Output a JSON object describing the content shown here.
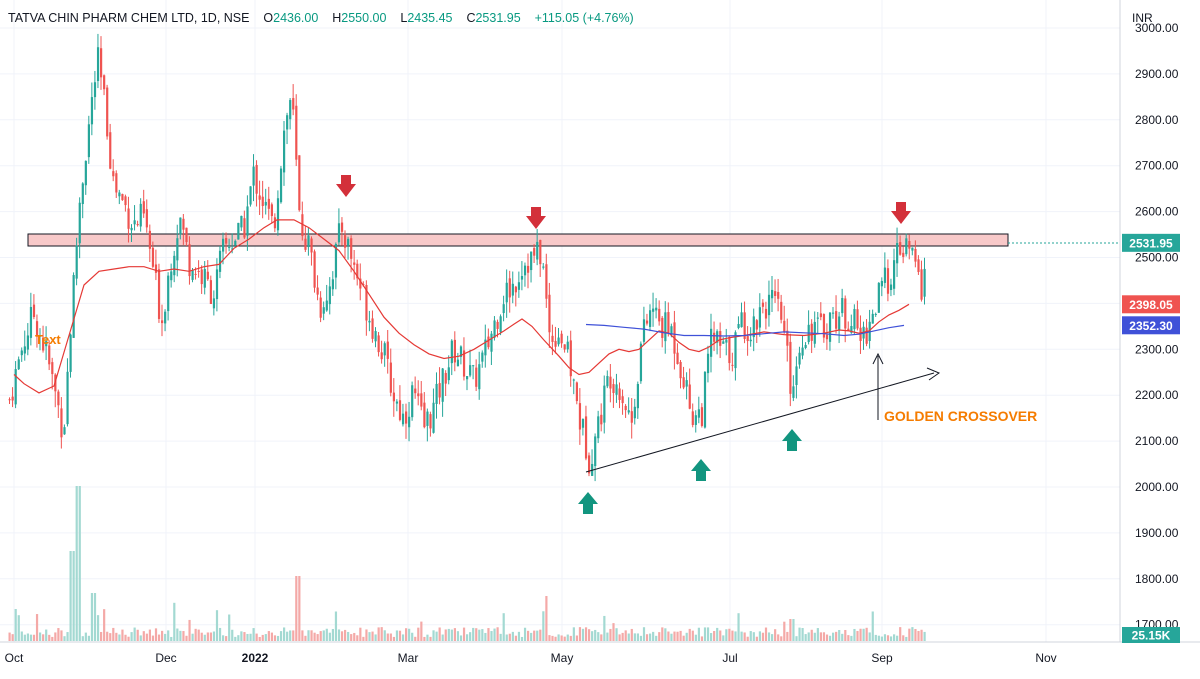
{
  "header": {
    "symbol": "TATVA CHIN PHARM CHEM LTD, 1D, NSE",
    "open_label": "O",
    "open": "2436.00",
    "high_label": "H",
    "high": "2550.00",
    "low_label": "L",
    "low": "2435.45",
    "close_label": "C",
    "close": "2531.95",
    "change": "+115.05 (+4.76%)"
  },
  "currency": "INR",
  "colors": {
    "up": "#26a69a",
    "down": "#ef5350",
    "vol_up": "#a3d9d2",
    "vol_down": "#f4a9a7",
    "ma_red": "#e53935",
    "ma_blue": "#3f51d8",
    "arrow_red": "#d3303a",
    "arrow_green": "#12957f",
    "orange_text": "#f57c00",
    "resistance_fill": "#f8c9c9"
  },
  "chart_data": {
    "type": "candlestick",
    "title": "TATVA CHIN PHARM CHEM LTD, 1D, NSE",
    "y_axis": {
      "unit": "INR",
      "range": [
        1680,
        3010
      ],
      "ticks": [
        "3000.00",
        "2900.00",
        "2800.00",
        "2700.00",
        "2600.00",
        "2500.00",
        "2400.00",
        "2300.00",
        "2200.00",
        "2100.00",
        "2000.00",
        "1900.00",
        "1800.00",
        "1700.00"
      ]
    },
    "x_axis": {
      "ticks": [
        "Oct",
        "Dec",
        "2022",
        "Mar",
        "May",
        "Jul",
        "Sep",
        "Nov"
      ]
    },
    "price_tags": [
      {
        "value": 2531.95,
        "label": "2531.95",
        "color": "#26a69a"
      },
      {
        "value": 2398.05,
        "label": "2398.05",
        "color": "#ef5350"
      },
      {
        "value": 2352.3,
        "label": "2352.30",
        "color": "#3f51d8"
      }
    ],
    "volume_tag": {
      "label": "25.15K",
      "color": "#26a69a"
    },
    "resistance_zone": {
      "top": 2550,
      "bottom": 2525
    },
    "series": [
      {
        "name": "MA red",
        "color": "#e53935",
        "points": [
          [
            0,
            2245
          ],
          [
            10,
            2225
          ],
          [
            25,
            2205
          ],
          [
            40,
            2220
          ],
          [
            55,
            2330
          ],
          [
            70,
            2440
          ],
          [
            85,
            2470
          ],
          [
            100,
            2475
          ],
          [
            115,
            2480
          ],
          [
            130,
            2480
          ],
          [
            145,
            2470
          ],
          [
            160,
            2475
          ],
          [
            175,
            2470
          ],
          [
            190,
            2480
          ],
          [
            205,
            2485
          ],
          [
            220,
            2520
          ],
          [
            235,
            2540
          ],
          [
            250,
            2565
          ],
          [
            263,
            2582
          ],
          [
            280,
            2582
          ],
          [
            295,
            2565
          ],
          [
            310,
            2540
          ],
          [
            325,
            2515
          ],
          [
            340,
            2470
          ],
          [
            355,
            2420
          ],
          [
            370,
            2370
          ],
          [
            385,
            2335
          ],
          [
            400,
            2310
          ],
          [
            415,
            2290
          ],
          [
            430,
            2280
          ],
          [
            445,
            2285
          ],
          [
            460,
            2300
          ],
          [
            475,
            2320
          ],
          [
            490,
            2340
          ],
          [
            500,
            2355
          ],
          [
            508,
            2366
          ],
          [
            518,
            2350
          ],
          [
            530,
            2320
          ],
          [
            545,
            2285
          ],
          [
            555,
            2260
          ],
          [
            565,
            2245
          ],
          [
            575,
            2250
          ],
          [
            585,
            2270
          ],
          [
            595,
            2290
          ],
          [
            605,
            2300
          ],
          [
            615,
            2295
          ],
          [
            625,
            2300
          ],
          [
            635,
            2320
          ],
          [
            645,
            2340
          ],
          [
            655,
            2335
          ],
          [
            665,
            2315
          ],
          [
            675,
            2300
          ],
          [
            685,
            2295
          ],
          [
            695,
            2305
          ],
          [
            705,
            2320
          ],
          [
            715,
            2325
          ],
          [
            730,
            2330
          ],
          [
            750,
            2338
          ],
          [
            770,
            2332
          ],
          [
            790,
            2330
          ],
          [
            810,
            2335
          ],
          [
            825,
            2342
          ],
          [
            835,
            2340
          ],
          [
            845,
            2335
          ],
          [
            855,
            2340
          ],
          [
            865,
            2360
          ],
          [
            875,
            2375
          ],
          [
            885,
            2385
          ],
          [
            895,
            2398
          ]
        ]
      },
      {
        "name": "MA blue",
        "color": "#3f51d8",
        "points": [
          [
            572,
            2354
          ],
          [
            590,
            2352
          ],
          [
            610,
            2348
          ],
          [
            630,
            2344
          ],
          [
            650,
            2336
          ],
          [
            670,
            2330
          ],
          [
            690,
            2330
          ],
          [
            710,
            2329
          ],
          [
            730,
            2330
          ],
          [
            750,
            2334
          ],
          [
            770,
            2338
          ],
          [
            790,
            2336
          ],
          [
            810,
            2334
          ],
          [
            830,
            2330
          ],
          [
            845,
            2333
          ],
          [
            860,
            2340
          ],
          [
            875,
            2347
          ],
          [
            890,
            2352
          ]
        ]
      }
    ]
  },
  "annotations": {
    "text_label": "Text",
    "golden_crossover": "GOLDEN CROSSOVER"
  }
}
